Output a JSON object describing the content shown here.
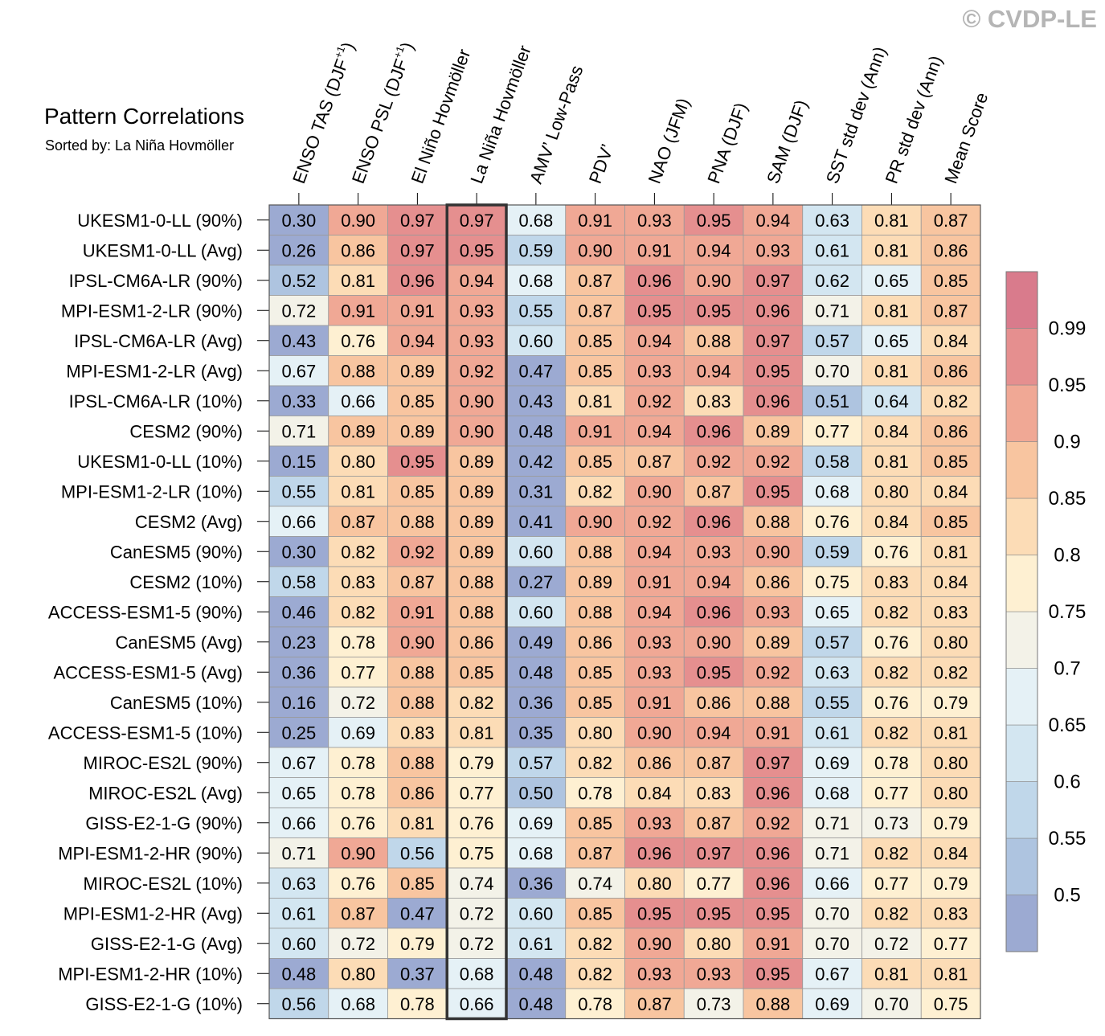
{
  "chart_data": {
    "type": "heatmap",
    "title": "Pattern Correlations",
    "subtitle": "Sorted by: La Niña Hovmöller",
    "watermark": "© CVDP-LE",
    "highlighted_column": "La Niña Hovmöller",
    "columns": [
      {
        "base": "ENSO TAS (DJF",
        "sup": "+1",
        "tail": ")"
      },
      {
        "base": "ENSO PSL (DJF",
        "sup": "+1",
        "tail": ")"
      },
      {
        "base": "El Niño Hovmöller"
      },
      {
        "base": "La Niña Hovmöller"
      },
      {
        "base": "AMV’ Low-Pass"
      },
      {
        "base": "PDV’"
      },
      {
        "base": "NAO (JFM)"
      },
      {
        "base": "PNA (DJF)"
      },
      {
        "base": "SAM (DJF)"
      },
      {
        "base": "SST std dev (Ann)"
      },
      {
        "base": "PR std dev (Ann)"
      },
      {
        "base": "Mean Score"
      }
    ],
    "rows": [
      "UKESM1-0-LL (90%)",
      "UKESM1-0-LL (Avg)",
      "IPSL-CM6A-LR (90%)",
      "MPI-ESM1-2-LR (90%)",
      "IPSL-CM6A-LR (Avg)",
      "MPI-ESM1-2-LR (Avg)",
      "IPSL-CM6A-LR (10%)",
      "CESM2 (90%)",
      "UKESM1-0-LL (10%)",
      "MPI-ESM1-2-LR (10%)",
      "CESM2 (Avg)",
      "CanESM5 (90%)",
      "CESM2 (10%)",
      "ACCESS-ESM1-5 (90%)",
      "CanESM5 (Avg)",
      "ACCESS-ESM1-5 (Avg)",
      "CanESM5 (10%)",
      "ACCESS-ESM1-5 (10%)",
      "MIROC-ES2L (90%)",
      "MIROC-ES2L (Avg)",
      "GISS-E2-1-G (90%)",
      "MPI-ESM1-2-HR (90%)",
      "MIROC-ES2L (10%)",
      "MPI-ESM1-2-HR (Avg)",
      "GISS-E2-1-G (Avg)",
      "MPI-ESM1-2-HR (10%)",
      "GISS-E2-1-G (10%)"
    ],
    "values": [
      [
        "0.30",
        "0.90",
        "0.97",
        "0.97",
        "0.68",
        "0.91",
        "0.93",
        "0.95",
        "0.94",
        "0.63",
        "0.81",
        "0.87"
      ],
      [
        "0.26",
        "0.86",
        "0.97",
        "0.95",
        "0.59",
        "0.90",
        "0.91",
        "0.94",
        "0.93",
        "0.61",
        "0.81",
        "0.86"
      ],
      [
        "0.52",
        "0.81",
        "0.96",
        "0.94",
        "0.68",
        "0.87",
        "0.96",
        "0.90",
        "0.97",
        "0.62",
        "0.65",
        "0.85"
      ],
      [
        "0.72",
        "0.91",
        "0.91",
        "0.93",
        "0.55",
        "0.87",
        "0.95",
        "0.95",
        "0.96",
        "0.71",
        "0.81",
        "0.87"
      ],
      [
        "0.43",
        "0.76",
        "0.94",
        "0.93",
        "0.60",
        "0.85",
        "0.94",
        "0.88",
        "0.97",
        "0.57",
        "0.65",
        "0.84"
      ],
      [
        "0.67",
        "0.88",
        "0.89",
        "0.92",
        "0.47",
        "0.85",
        "0.93",
        "0.94",
        "0.95",
        "0.70",
        "0.81",
        "0.86"
      ],
      [
        "0.33",
        "0.66",
        "0.85",
        "0.90",
        "0.43",
        "0.81",
        "0.92",
        "0.83",
        "0.96",
        "0.51",
        "0.64",
        "0.82"
      ],
      [
        "0.71",
        "0.89",
        "0.89",
        "0.90",
        "0.48",
        "0.91",
        "0.94",
        "0.96",
        "0.89",
        "0.77",
        "0.84",
        "0.86"
      ],
      [
        "0.15",
        "0.80",
        "0.95",
        "0.89",
        "0.42",
        "0.85",
        "0.87",
        "0.92",
        "0.92",
        "0.58",
        "0.81",
        "0.85"
      ],
      [
        "0.55",
        "0.81",
        "0.85",
        "0.89",
        "0.31",
        "0.82",
        "0.90",
        "0.87",
        "0.95",
        "0.68",
        "0.80",
        "0.84"
      ],
      [
        "0.66",
        "0.87",
        "0.88",
        "0.89",
        "0.41",
        "0.90",
        "0.92",
        "0.96",
        "0.88",
        "0.76",
        "0.84",
        "0.85"
      ],
      [
        "0.30",
        "0.82",
        "0.92",
        "0.89",
        "0.60",
        "0.88",
        "0.94",
        "0.93",
        "0.90",
        "0.59",
        "0.76",
        "0.81"
      ],
      [
        "0.58",
        "0.83",
        "0.87",
        "0.88",
        "0.27",
        "0.89",
        "0.91",
        "0.94",
        "0.86",
        "0.75",
        "0.83",
        "0.84"
      ],
      [
        "0.46",
        "0.82",
        "0.91",
        "0.88",
        "0.60",
        "0.88",
        "0.94",
        "0.96",
        "0.93",
        "0.65",
        "0.82",
        "0.83"
      ],
      [
        "0.23",
        "0.78",
        "0.90",
        "0.86",
        "0.49",
        "0.86",
        "0.93",
        "0.90",
        "0.89",
        "0.57",
        "0.76",
        "0.80"
      ],
      [
        "0.36",
        "0.77",
        "0.88",
        "0.85",
        "0.48",
        "0.85",
        "0.93",
        "0.95",
        "0.92",
        "0.63",
        "0.82",
        "0.82"
      ],
      [
        "0.16",
        "0.72",
        "0.88",
        "0.82",
        "0.36",
        "0.85",
        "0.91",
        "0.86",
        "0.88",
        "0.55",
        "0.76",
        "0.79"
      ],
      [
        "0.25",
        "0.69",
        "0.83",
        "0.81",
        "0.35",
        "0.80",
        "0.90",
        "0.94",
        "0.91",
        "0.61",
        "0.82",
        "0.81"
      ],
      [
        "0.67",
        "0.78",
        "0.88",
        "0.79",
        "0.57",
        "0.82",
        "0.86",
        "0.87",
        "0.97",
        "0.69",
        "0.78",
        "0.80"
      ],
      [
        "0.65",
        "0.78",
        "0.86",
        "0.77",
        "0.50",
        "0.78",
        "0.84",
        "0.83",
        "0.96",
        "0.68",
        "0.77",
        "0.80"
      ],
      [
        "0.66",
        "0.76",
        "0.81",
        "0.76",
        "0.69",
        "0.85",
        "0.93",
        "0.87",
        "0.92",
        "0.71",
        "0.73",
        "0.79"
      ],
      [
        "0.71",
        "0.90",
        "0.56",
        "0.75",
        "0.68",
        "0.87",
        "0.96",
        "0.97",
        "0.96",
        "0.71",
        "0.82",
        "0.84"
      ],
      [
        "0.63",
        "0.76",
        "0.85",
        "0.74",
        "0.36",
        "0.74",
        "0.80",
        "0.77",
        "0.96",
        "0.66",
        "0.77",
        "0.79"
      ],
      [
        "0.61",
        "0.87",
        "0.47",
        "0.72",
        "0.60",
        "0.85",
        "0.95",
        "0.95",
        "0.95",
        "0.70",
        "0.82",
        "0.83"
      ],
      [
        "0.60",
        "0.72",
        "0.79",
        "0.72",
        "0.61",
        "0.82",
        "0.90",
        "0.80",
        "0.91",
        "0.70",
        "0.72",
        "0.77"
      ],
      [
        "0.48",
        "0.80",
        "0.37",
        "0.68",
        "0.48",
        "0.82",
        "0.93",
        "0.93",
        "0.95",
        "0.67",
        "0.81",
        "0.81"
      ],
      [
        "0.56",
        "0.68",
        "0.78",
        "0.66",
        "0.48",
        "0.78",
        "0.87",
        "0.73",
        "0.88",
        "0.69",
        "0.70",
        "0.75"
      ]
    ],
    "colorbar": {
      "levels": [
        0.5,
        0.55,
        0.6,
        0.65,
        0.7,
        0.75,
        0.8,
        0.85,
        0.9,
        0.95,
        0.99
      ],
      "tick_labels": [
        "0.5",
        "0.55",
        "0.6",
        "0.65",
        "0.7",
        "0.75",
        "0.8",
        "0.85",
        "0.9",
        "0.95",
        "0.99"
      ],
      "colors": [
        "#9caad2",
        "#aec4e0",
        "#c0d7ea",
        "#d3e6f1",
        "#e5f1f6",
        "#f3f2e8",
        "#fef0d2",
        "#fcdcb6",
        "#f8c5a0",
        "#f0a895",
        "#e58f8f",
        "#d97b8c"
      ]
    },
    "highlight_color": "#333333"
  }
}
